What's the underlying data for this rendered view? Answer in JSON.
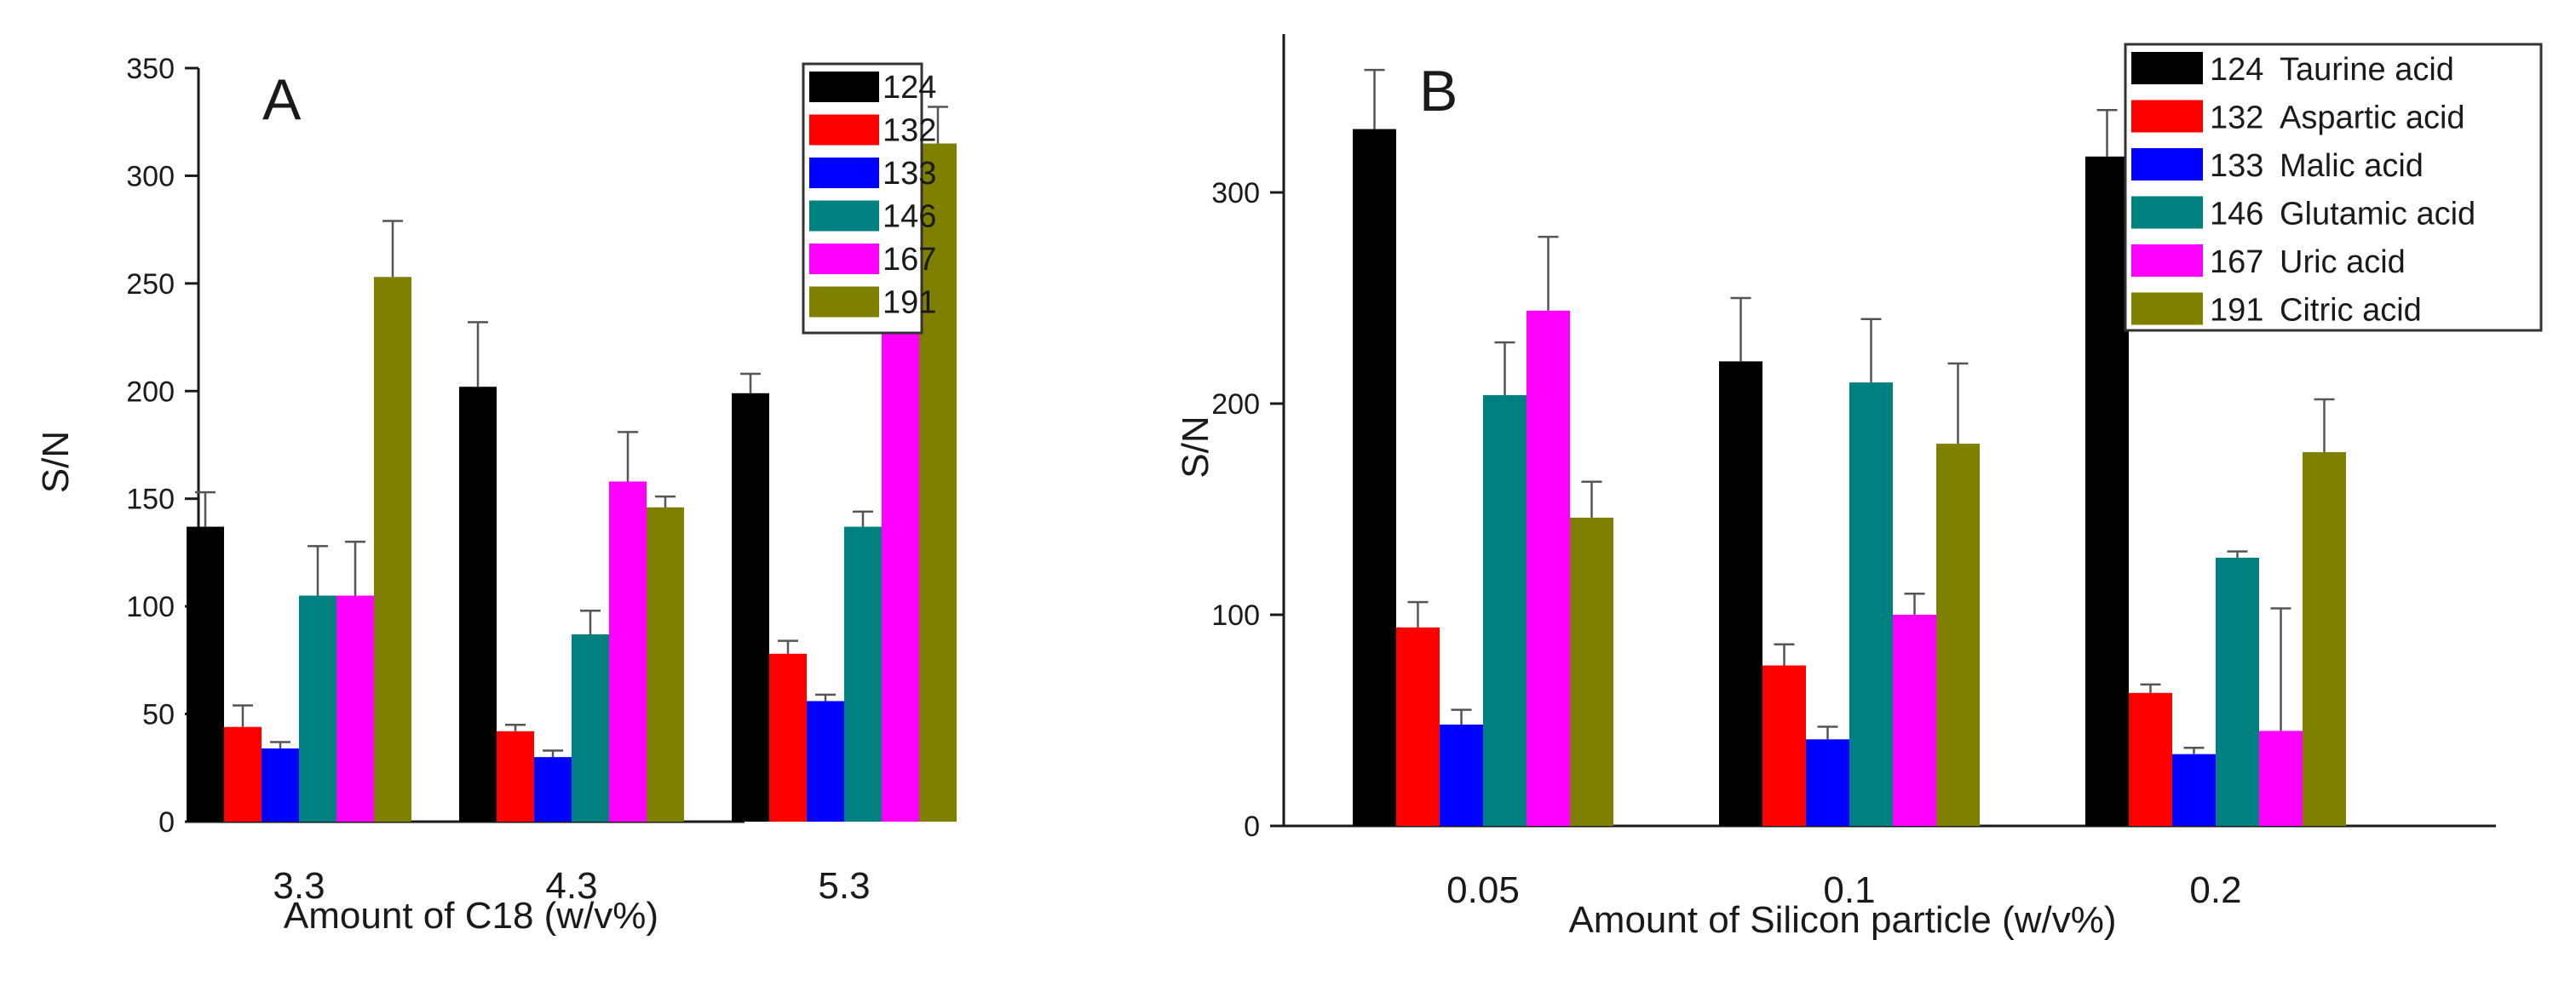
{
  "colors": {
    "124": "#000000",
    "132": "#ff0000",
    "133": "#0000ff",
    "146": "#008080",
    "167": "#ff00ff",
    "191": "#808000"
  },
  "chart_data": [
    {
      "type": "bar",
      "panel": "A",
      "title": "",
      "xlabel": "Amount of C18 (w/v%)",
      "ylabel": "S/N",
      "ylim": [
        0,
        350
      ],
      "yticks": [
        0,
        50,
        100,
        150,
        200,
        250,
        300,
        350
      ],
      "categories": [
        "3.3",
        "4.3",
        "5.3"
      ],
      "legend_position": "top-right",
      "series": [
        {
          "name": "124",
          "values": [
            137,
            202,
            199
          ],
          "errors": [
            16,
            30,
            9
          ]
        },
        {
          "name": "132",
          "values": [
            44,
            42,
            78
          ],
          "errors": [
            10,
            3,
            6
          ]
        },
        {
          "name": "133",
          "values": [
            34,
            30,
            56
          ],
          "errors": [
            3,
            3,
            3
          ]
        },
        {
          "name": "146",
          "values": [
            105,
            87,
            137
          ],
          "errors": [
            23,
            11,
            7
          ]
        },
        {
          "name": "167",
          "values": [
            105,
            158,
            228
          ],
          "errors": [
            25,
            23,
            5
          ]
        },
        {
          "name": "191",
          "values": [
            253,
            146,
            315
          ],
          "errors": [
            26,
            5,
            17
          ]
        }
      ]
    },
    {
      "type": "bar",
      "panel": "B",
      "title": "",
      "xlabel": "Amount of Silicon particle (w/v%)",
      "ylabel": "S/N",
      "ylim": [
        0,
        375
      ],
      "yticks": [
        0,
        100,
        200,
        300
      ],
      "categories": [
        "0.05",
        "0.1",
        "0.2"
      ],
      "legend_position": "top-right",
      "series": [
        {
          "name": "124",
          "label": "Taurine acid",
          "values": [
            330,
            220,
            317
          ],
          "errors": [
            28,
            30,
            22
          ]
        },
        {
          "name": "132",
          "label": "Aspartic acid",
          "values": [
            94,
            76,
            63
          ],
          "errors": [
            12,
            10,
            4
          ]
        },
        {
          "name": "133",
          "label": "Malic acid",
          "values": [
            48,
            41,
            34
          ],
          "errors": [
            7,
            6,
            3
          ]
        },
        {
          "name": "146",
          "label": "Glutamic acid",
          "values": [
            204,
            210,
            127
          ],
          "errors": [
            25,
            30,
            3
          ]
        },
        {
          "name": "167",
          "label": "Uric acid",
          "values": [
            244,
            100,
            45
          ],
          "errors": [
            35,
            10,
            58
          ]
        },
        {
          "name": "191",
          "label": "Citric acid",
          "values": [
            146,
            181,
            177
          ],
          "errors": [
            17,
            38,
            25
          ]
        }
      ]
    }
  ]
}
